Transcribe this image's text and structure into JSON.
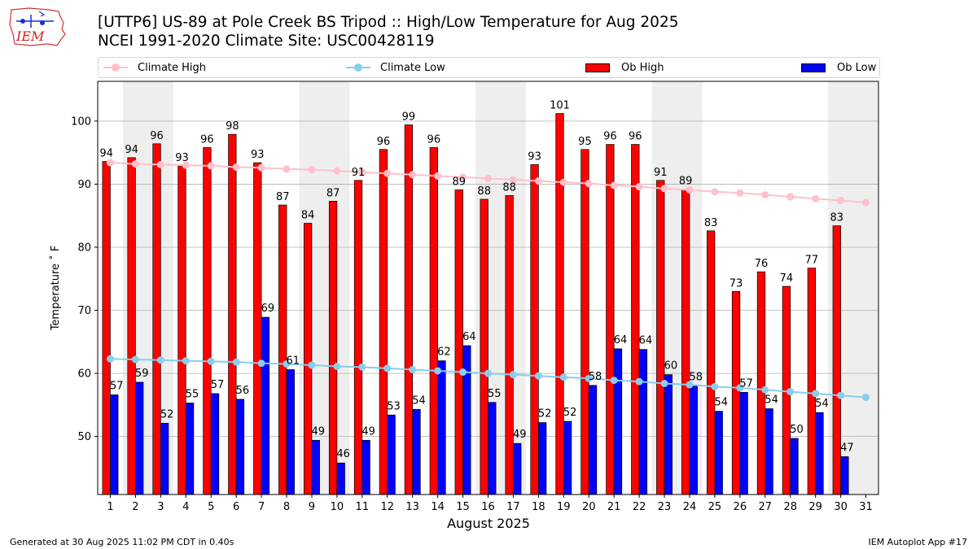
{
  "header": {
    "title_line1": "[UTTP6] US-89 at Pole Creek BS Tripod  :: High/Low Temperature for Aug 2025",
    "title_line2": "NCEI 1991-2020 Climate Site: USC00428119",
    "logo_text": "IEM"
  },
  "legend": {
    "climate_high": "Climate High",
    "climate_low": "Climate Low",
    "ob_high": "Ob High",
    "ob_low": "Ob Low"
  },
  "footer": {
    "generated": "Generated at 30 Aug 2025 11:02 PM CDT in 0.40s",
    "app": "IEM Autoplot App #17"
  },
  "colors": {
    "ob_high": "#ff0000",
    "ob_low": "#0000ff",
    "climate_high": "#ffc0cb",
    "climate_low": "#87ceeb",
    "weekend_shade": "#eeeeee",
    "grid": "#b0b0b0"
  },
  "chart_data": {
    "type": "bar",
    "xlabel": "August 2025",
    "ylabel": "Temperature ˚ F",
    "ylim": [
      40.8,
      106.3
    ],
    "yticks": [
      50,
      60,
      70,
      80,
      90,
      100
    ],
    "grid": "horizontal",
    "legend_position": "top",
    "categories": [
      "1",
      "2",
      "3",
      "4",
      "5",
      "6",
      "7",
      "8",
      "9",
      "10",
      "11",
      "12",
      "13",
      "14",
      "15",
      "16",
      "17",
      "18",
      "19",
      "20",
      "21",
      "22",
      "23",
      "24",
      "25",
      "26",
      "27",
      "28",
      "29",
      "30",
      "31"
    ],
    "shaded_days": [
      2,
      3,
      9,
      10,
      16,
      17,
      23,
      24,
      30,
      31
    ],
    "series": [
      {
        "name": "Ob High",
        "kind": "bar",
        "values": [
          93.6,
          94.2,
          96.4,
          92.9,
          95.8,
          97.9,
          93.4,
          86.7,
          83.8,
          87.3,
          90.6,
          95.5,
          99.4,
          95.8,
          89.1,
          87.6,
          88.2,
          93.1,
          101.2,
          95.5,
          96.3,
          96.3,
          90.6,
          89.2,
          82.6,
          73.0,
          76.1,
          73.8,
          76.7,
          83.4,
          null
        ],
        "labels": [
          "94",
          "94",
          "96",
          "93",
          "96",
          "98",
          "93",
          "87",
          "84",
          "87",
          "91",
          "96",
          "99",
          "96",
          "89",
          "88",
          "88",
          "93",
          "101",
          "95",
          "96",
          "96",
          "91",
          "89",
          "83",
          "73",
          "76",
          "74",
          "77",
          "83",
          ""
        ]
      },
      {
        "name": "Ob Low",
        "kind": "bar",
        "values": [
          56.6,
          58.6,
          52.1,
          55.3,
          56.8,
          55.9,
          68.9,
          60.6,
          49.4,
          45.8,
          49.4,
          53.4,
          54.3,
          62.0,
          64.4,
          55.4,
          48.9,
          52.2,
          52.4,
          58.1,
          63.9,
          63.8,
          59.8,
          58.0,
          54.0,
          57.0,
          54.4,
          49.7,
          53.8,
          46.8,
          null
        ],
        "labels": [
          "57",
          "59",
          "52",
          "55",
          "57",
          "56",
          "69",
          "61",
          "49",
          "46",
          "49",
          "53",
          "54",
          "62",
          "64",
          "55",
          "49",
          "52",
          "52",
          "58",
          "64",
          "64",
          "60",
          "58",
          "54",
          "57",
          "54",
          "50",
          "54",
          "47",
          ""
        ]
      },
      {
        "name": "Climate High",
        "kind": "line",
        "values": [
          93.4,
          93.2,
          93.1,
          93.0,
          92.9,
          92.7,
          92.6,
          92.4,
          92.3,
          92.1,
          91.9,
          91.7,
          91.5,
          91.3,
          91.1,
          90.9,
          90.7,
          90.5,
          90.3,
          90.1,
          89.8,
          89.6,
          89.3,
          89.1,
          88.8,
          88.6,
          88.3,
          88.0,
          87.7,
          87.4,
          87.1
        ]
      },
      {
        "name": "Climate Low",
        "kind": "line",
        "values": [
          62.3,
          62.2,
          62.1,
          62.0,
          61.9,
          61.8,
          61.6,
          61.5,
          61.3,
          61.1,
          61.0,
          60.8,
          60.6,
          60.4,
          60.2,
          60.0,
          59.8,
          59.6,
          59.4,
          59.2,
          58.9,
          58.7,
          58.4,
          58.2,
          57.9,
          57.7,
          57.4,
          57.1,
          56.8,
          56.5,
          56.2
        ]
      }
    ]
  }
}
